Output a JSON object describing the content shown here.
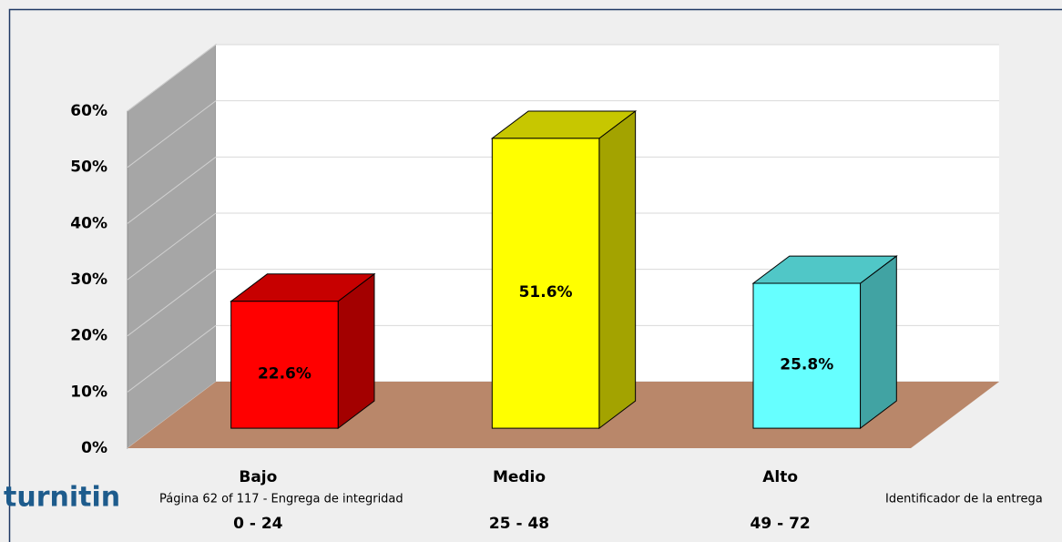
{
  "chart_data": {
    "type": "bar3d",
    "categories": [
      "Bajo",
      "Medio",
      "Alto"
    ],
    "category_ranges": [
      "0 - 24",
      "25 - 48",
      "49 - 72"
    ],
    "series": [
      {
        "colors": [
          "#ff0000",
          "#ffff00",
          "#66ffff"
        ],
        "values": [
          22.6,
          51.6,
          25.8
        ],
        "value_labels": [
          "22.6%",
          "51.6%",
          "25.8%"
        ]
      }
    ],
    "ylim": [
      0,
      60
    ],
    "yticks": [
      {
        "value": 0,
        "label": "0%"
      },
      {
        "value": 10,
        "label": "10%"
      },
      {
        "value": 20,
        "label": "20%"
      },
      {
        "value": 30,
        "label": "30%"
      },
      {
        "value": 40,
        "label": "40%"
      },
      {
        "value": 50,
        "label": "50%"
      },
      {
        "value": 60,
        "label": "60%"
      }
    ],
    "grid": true
  },
  "footer": {
    "logo": "turnitin",
    "page": "Página 62 of 117 - Engrega de integridad",
    "id": "Identificador de la entrega"
  }
}
